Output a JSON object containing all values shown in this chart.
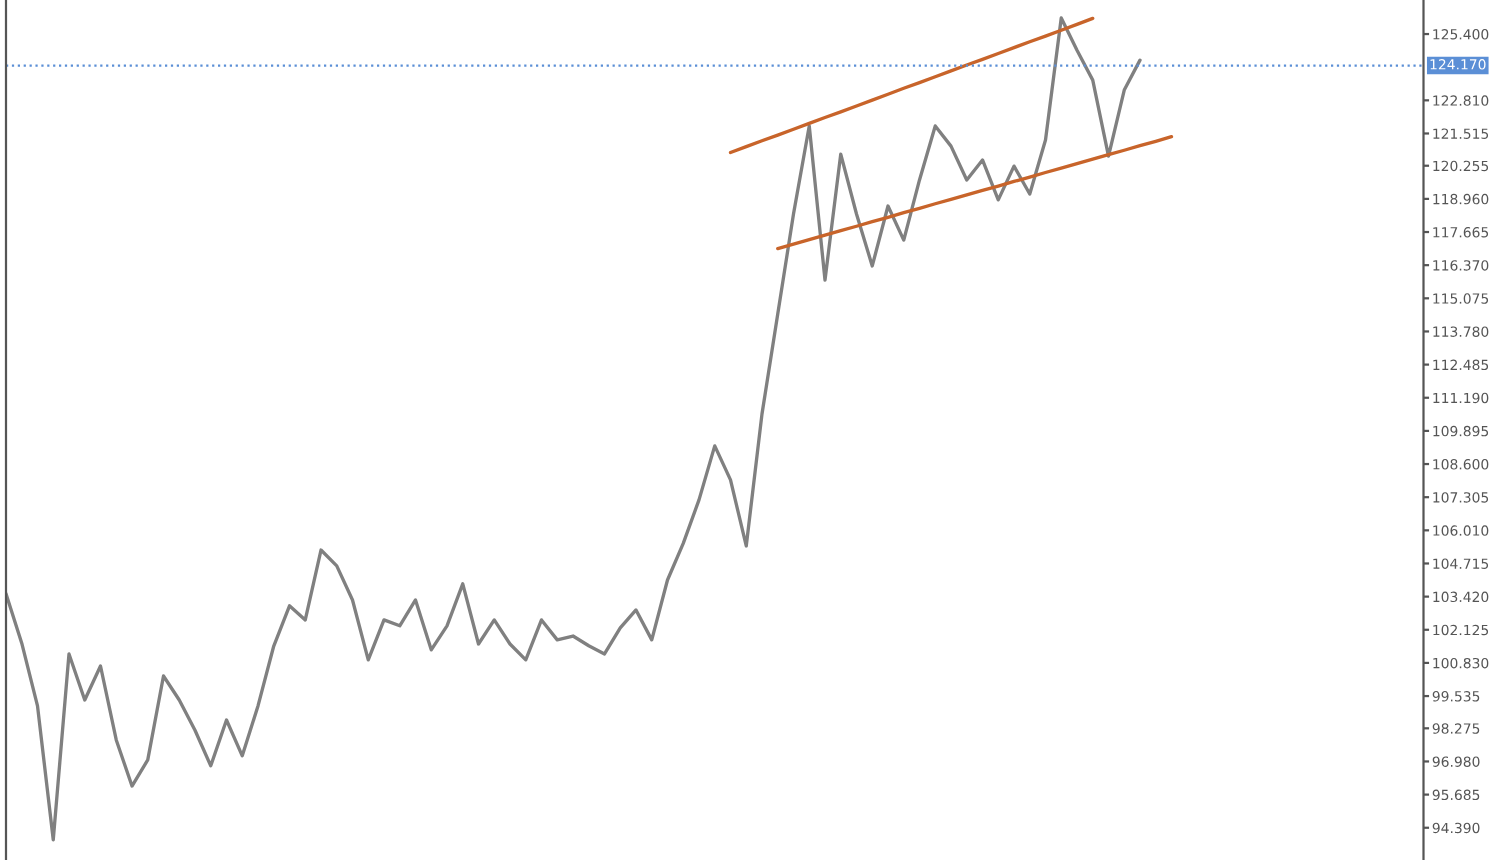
{
  "chart_data": {
    "type": "line",
    "categories": [
      null,
      null,
      null,
      null,
      null,
      null,
      null,
      null,
      null,
      null,
      null,
      null,
      null,
      null,
      null,
      null,
      null,
      null,
      null,
      null,
      null,
      null,
      null,
      null,
      null,
      null,
      null,
      null,
      null,
      null,
      null,
      null,
      null,
      null,
      null,
      null,
      null,
      null,
      null,
      null,
      null,
      null,
      null,
      null,
      null,
      null,
      null,
      null,
      null,
      null,
      null,
      null,
      null,
      null,
      null,
      null,
      null,
      null,
      null,
      null,
      null,
      null,
      null,
      null,
      null,
      null,
      null,
      null,
      null,
      null,
      null,
      null,
      null,
      null,
      null,
      null,
      null,
      null,
      null,
      null,
      null,
      null,
      null,
      null,
      null,
      null,
      null,
      null,
      null,
      null,
      null
    ],
    "ylim": [
      93.13,
      126.73
    ],
    "tick_labels": "y",
    "grid": false,
    "legend": false,
    "yticks": [
      {
        "value": 125.4,
        "label": "125.400"
      },
      {
        "value": 122.81,
        "label": "122.810"
      },
      {
        "value": 121.515,
        "label": "121.515"
      },
      {
        "value": 120.255,
        "label": "120.255"
      },
      {
        "value": 118.96,
        "label": "118.960"
      },
      {
        "value": 117.665,
        "label": "117.665"
      },
      {
        "value": 116.37,
        "label": "116.370"
      },
      {
        "value": 115.075,
        "label": "115.075"
      },
      {
        "value": 113.78,
        "label": "113.780"
      },
      {
        "value": 112.485,
        "label": "112.485"
      },
      {
        "value": 111.19,
        "label": "111.190"
      },
      {
        "value": 109.895,
        "label": "109.895"
      },
      {
        "value": 108.6,
        "label": "108.600"
      },
      {
        "value": 107.305,
        "label": "107.305"
      },
      {
        "value": 106.01,
        "label": "106.010"
      },
      {
        "value": 104.715,
        "label": "104.715"
      },
      {
        "value": 103.42,
        "label": "103.420"
      },
      {
        "value": 102.125,
        "label": "102.125"
      },
      {
        "value": 100.83,
        "label": "100.830"
      },
      {
        "value": 99.535,
        "label": "99.535"
      },
      {
        "value": 98.275,
        "label": "98.275"
      },
      {
        "value": 96.98,
        "label": "96.980"
      },
      {
        "value": 95.685,
        "label": "95.685"
      },
      {
        "value": 94.39,
        "label": "94.390"
      }
    ],
    "ref_lines": [
      {
        "axis": "y",
        "value": 124.17,
        "label": "124.170",
        "color": "#5b8fd6",
        "line_style": "dotted"
      }
    ],
    "series": [
      {
        "color": "#808080",
        "values": [
          103.53,
          101.6,
          99.15,
          93.92,
          101.18,
          99.38,
          100.71,
          97.82,
          96.02,
          97.04,
          100.32,
          99.38,
          98.2,
          96.81,
          98.6,
          97.2,
          99.15,
          101.49,
          103.06,
          102.51,
          105.24,
          104.62,
          103.29,
          100.95,
          102.51,
          102.28,
          103.29,
          101.34,
          102.28,
          103.92,
          101.57,
          102.51,
          101.57,
          100.95,
          102.51,
          101.73,
          101.88,
          101.5,
          101.18,
          102.2,
          102.9,
          101.73,
          104.07,
          105.5,
          107.2,
          109.31,
          107.98,
          105.4,
          110.56,
          114.46,
          118.37,
          121.81,
          115.79,
          120.71,
          118.37,
          116.34,
          118.68,
          117.35,
          119.7,
          121.81,
          121.02,
          119.7,
          120.48,
          118.92,
          120.24,
          119.15,
          121.26,
          126.03,
          124.77,
          123.6,
          120.63,
          123.21,
          124.38,
          null,
          null,
          null,
          null,
          null,
          null,
          null,
          null,
          null,
          null,
          null,
          null,
          null,
          null,
          null,
          null,
          null,
          null
        ]
      },
      {
        "color": "#c8642a",
        "values": [
          null,
          null,
          null,
          null,
          null,
          null,
          null,
          null,
          null,
          null,
          null,
          null,
          null,
          null,
          null,
          null,
          null,
          null,
          null,
          null,
          null,
          null,
          null,
          null,
          null,
          null,
          null,
          null,
          null,
          null,
          null,
          null,
          null,
          null,
          null,
          null,
          null,
          null,
          null,
          null,
          null,
          null,
          null,
          null,
          null,
          null,
          120.77,
          121.0,
          121.23,
          121.45,
          121.68,
          121.91,
          122.14,
          122.36,
          122.59,
          122.82,
          123.05,
          123.28,
          123.5,
          123.73,
          123.96,
          124.19,
          124.41,
          124.64,
          124.87,
          125.1,
          125.32,
          125.55,
          125.78,
          126.01,
          null,
          null,
          null,
          null,
          null,
          null,
          null,
          null,
          null,
          null,
          null,
          null,
          null,
          null,
          null,
          null,
          null,
          null,
          null,
          null,
          null
        ]
      },
      {
        "color": "#c8642a",
        "values": [
          null,
          null,
          null,
          null,
          null,
          null,
          null,
          null,
          null,
          null,
          null,
          null,
          null,
          null,
          null,
          null,
          null,
          null,
          null,
          null,
          null,
          null,
          null,
          null,
          null,
          null,
          null,
          null,
          null,
          null,
          null,
          null,
          null,
          null,
          null,
          null,
          null,
          null,
          null,
          null,
          null,
          null,
          null,
          null,
          null,
          null,
          null,
          null,
          null,
          117.02,
          117.19,
          117.37,
          117.54,
          117.72,
          117.89,
          118.07,
          118.24,
          118.42,
          118.59,
          118.77,
          118.94,
          119.12,
          119.29,
          119.46,
          119.64,
          119.81,
          119.99,
          120.16,
          120.34,
          120.51,
          120.69,
          120.86,
          121.04,
          121.21,
          121.39,
          null,
          null,
          null,
          null,
          null,
          null,
          null,
          null,
          null,
          null,
          null,
          null,
          null,
          null,
          null,
          null
        ]
      }
    ]
  }
}
